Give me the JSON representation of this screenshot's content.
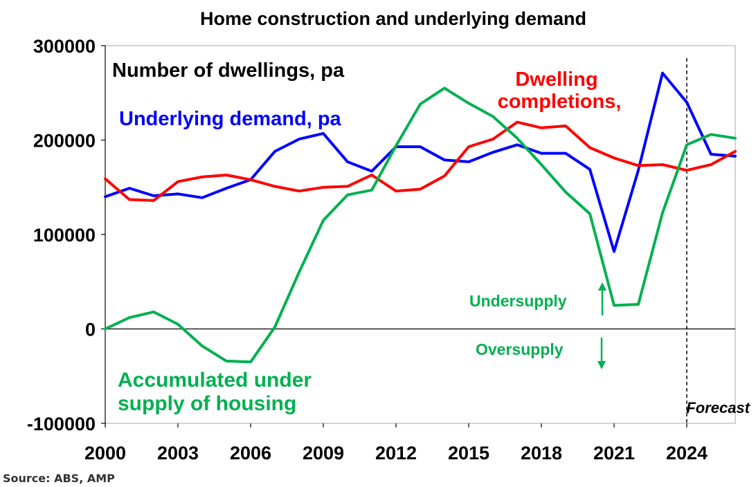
{
  "chart_data": {
    "type": "line",
    "title": "Home construction and underlying demand",
    "ylabel": "Number of dwellings, pa",
    "xlabel": "",
    "source": "Source: ABS, AMP",
    "xlim": [
      2000,
      2026
    ],
    "ylim": [
      -100000,
      300000
    ],
    "x_ticks": [
      "2000",
      "2003",
      "2006",
      "2009",
      "2012",
      "2015",
      "2018",
      "2021",
      "2024"
    ],
    "y_ticks": [
      "-100000",
      "0",
      "100000",
      "200000",
      "300000"
    ],
    "grid": false,
    "forecast_line_x": 2024,
    "forecast_label": "Forecast",
    "annotations": {
      "undersupply": "Undersupply",
      "oversupply": "Oversupply"
    },
    "colors": {
      "underlying_demand": "#0000ff",
      "completions": "#ff0000",
      "accumulated": "#00b050",
      "axis": "#000000"
    },
    "series": [
      {
        "name": "Underlying demand, pa",
        "color": "#0000ff",
        "x": [
          2000,
          2001,
          2002,
          2003,
          2004,
          2005,
          2006,
          2007,
          2008,
          2009,
          2010,
          2011,
          2012,
          2013,
          2014,
          2015,
          2016,
          2017,
          2018,
          2019,
          2020,
          2021,
          2022,
          2023,
          2024,
          2025,
          2026
        ],
        "values": [
          140000,
          149000,
          141000,
          143000,
          139000,
          149000,
          158000,
          188000,
          201000,
          207000,
          177000,
          167000,
          193000,
          193000,
          179000,
          177000,
          187000,
          195000,
          186000,
          186000,
          169000,
          82000,
          168000,
          271000,
          240000,
          185000,
          183000
        ]
      },
      {
        "name": "Dwelling completions,",
        "color": "#ff0000",
        "x": [
          2000,
          2001,
          2002,
          2003,
          2004,
          2005,
          2006,
          2007,
          2008,
          2009,
          2010,
          2011,
          2012,
          2013,
          2014,
          2015,
          2016,
          2017,
          2018,
          2019,
          2020,
          2021,
          2022,
          2023,
          2024,
          2025,
          2026
        ],
        "values": [
          159000,
          137000,
          136000,
          156000,
          161000,
          163000,
          158000,
          151000,
          146000,
          150000,
          151000,
          163000,
          146000,
          148000,
          162000,
          193000,
          201000,
          219000,
          213000,
          215000,
          192000,
          181000,
          173000,
          174000,
          168000,
          174000,
          188000
        ]
      },
      {
        "name": "Accumulated under supply of housing",
        "color": "#00b050",
        "x": [
          2000,
          2001,
          2002,
          2003,
          2004,
          2005,
          2006,
          2007,
          2008,
          2009,
          2010,
          2011,
          2012,
          2013,
          2014,
          2015,
          2016,
          2017,
          2018,
          2019,
          2020,
          2021,
          2022,
          2023,
          2024,
          2025,
          2026
        ],
        "values": [
          0,
          12000,
          18000,
          5000,
          -18000,
          -34000,
          -35000,
          2000,
          60000,
          115000,
          142000,
          147000,
          194000,
          238000,
          255000,
          239000,
          225000,
          202000,
          174000,
          145000,
          122000,
          25000,
          26000,
          123000,
          195000,
          206000,
          202000
        ]
      }
    ]
  }
}
